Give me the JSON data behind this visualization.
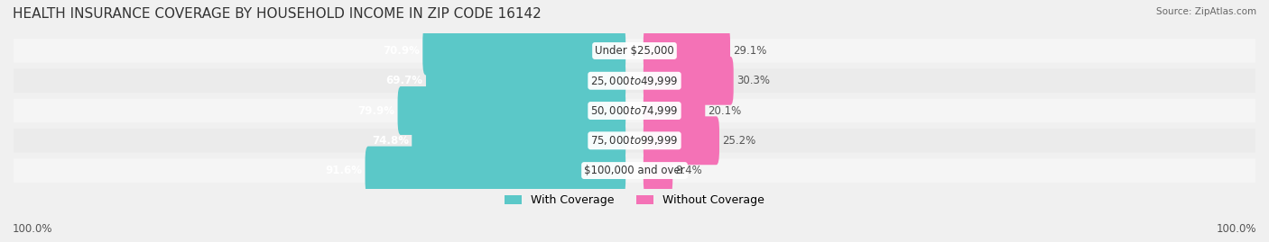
{
  "title": "HEALTH INSURANCE COVERAGE BY HOUSEHOLD INCOME IN ZIP CODE 16142",
  "source": "Source: ZipAtlas.com",
  "categories": [
    "Under $25,000",
    "$25,000 to $49,999",
    "$50,000 to $74,999",
    "$75,000 to $99,999",
    "$100,000 and over"
  ],
  "with_coverage": [
    70.9,
    69.7,
    79.9,
    74.8,
    91.6
  ],
  "without_coverage": [
    29.1,
    30.3,
    20.1,
    25.2,
    8.4
  ],
  "color_coverage": "#5bc8c8",
  "color_no_coverage": "#f472b6",
  "color_label_bg": "#ffffff",
  "bar_bg_color": "#e8e8e8",
  "row_bg_odd": "#f5f5f5",
  "row_bg_even": "#ebebeb",
  "title_fontsize": 11,
  "label_fontsize": 8.5,
  "legend_fontsize": 9,
  "axis_label_left": "100.0%",
  "axis_label_right": "100.0%",
  "figsize": [
    14.06,
    2.69
  ],
  "dpi": 100
}
